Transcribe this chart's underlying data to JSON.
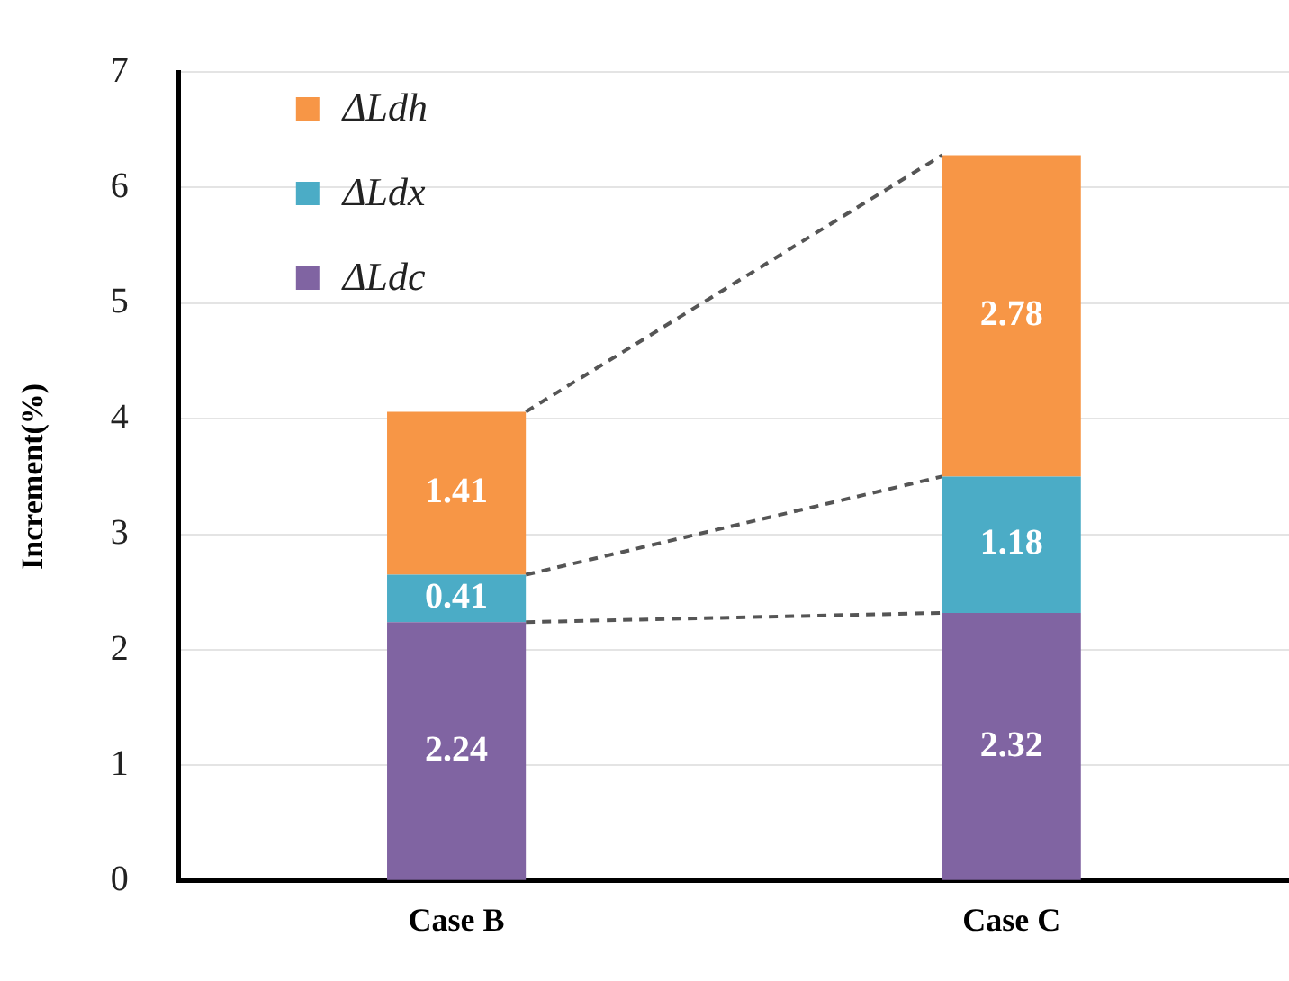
{
  "chart_data": {
    "type": "bar",
    "ylabel": "Increment(%)",
    "categories": [
      "Case B",
      "Case C"
    ],
    "series": [
      {
        "name": "ΔLdc",
        "color": "#8064a2",
        "values": [
          2.24,
          2.32
        ]
      },
      {
        "name": "ΔLdx",
        "color": "#4bacc6",
        "values": [
          0.41,
          1.18
        ]
      },
      {
        "name": "ΔLdh",
        "color": "#f79646",
        "values": [
          1.41,
          2.78
        ]
      }
    ],
    "stacked": true,
    "ylim": [
      0,
      7
    ],
    "yticks": [
      0,
      1,
      2,
      3,
      4,
      5,
      6,
      7
    ],
    "grid": "y",
    "legend": "top left",
    "data_labels": true
  }
}
